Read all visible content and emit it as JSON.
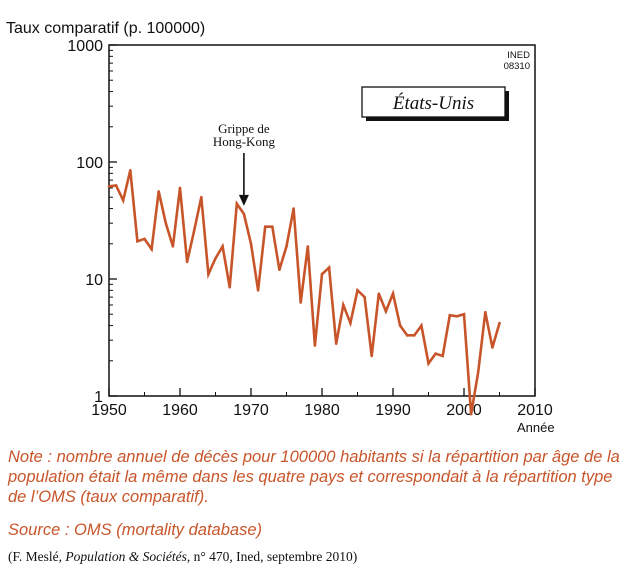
{
  "chart_data": {
    "type": "line",
    "title": "États-Unis",
    "ylabel": "Taux comparatif (p. 100000)",
    "xlabel": "Année",
    "yscale": "log",
    "ylim": [
      1,
      1000
    ],
    "xlim": [
      1950,
      2010
    ],
    "x_ticks": [
      "1950",
      "1960",
      "1970",
      "1980",
      "1990",
      "2000",
      "2010"
    ],
    "y_ticks": [
      "1",
      "10",
      "100",
      "1000"
    ],
    "grid": false,
    "badge": "INED\n08310",
    "annotation": {
      "text": "Grippe de\nHong-Kong",
      "x": 1969
    },
    "line_color": "#c8552a",
    "series": [
      {
        "x": [
          1950,
          1951,
          1952,
          1953,
          1954,
          1955,
          1956,
          1957,
          1958,
          1959,
          1960,
          1961,
          1962,
          1963,
          1964,
          1965,
          1966,
          1967,
          1968,
          1969,
          1970,
          1971,
          1972,
          1973,
          1974,
          1975,
          1976,
          1977,
          1978,
          1979,
          1980,
          1981,
          1982,
          1983,
          1984,
          1985,
          1986,
          1987,
          1988,
          1989,
          1990,
          1991,
          1992,
          1993,
          1994,
          1995,
          1996,
          1997,
          1998,
          1999,
          2000,
          2001,
          2002,
          2003,
          2004,
          2005
        ],
        "values": [
          62,
          63,
          47,
          85,
          21,
          22,
          18,
          56,
          30,
          19,
          60,
          14,
          26,
          50,
          11,
          15,
          19,
          8.5,
          44,
          36,
          20,
          8,
          28,
          28,
          12,
          19,
          40,
          6.3,
          19,
          2.7,
          11,
          12.5,
          2.8,
          6,
          4.2,
          8,
          7,
          2.2,
          7.5,
          5.3,
          7.5,
          4,
          3.3,
          3.3,
          4,
          1.9,
          2.3,
          2.2,
          4.9,
          4.8,
          5,
          0.7,
          1.6,
          5.2,
          2.6,
          4.2
        ]
      }
    ]
  },
  "note": "Note : nombre annuel de décès pour 100000 habitants si la répartition par âge de la population était la même dans les quatre pays et correspondait à la répartition type de l’OMS (taux comparatif).",
  "source": "Source : OMS (mortality database)",
  "citation": {
    "prefix": "(F. Meslé, ",
    "journal": "Population & Sociétés",
    "suffix": ", n° 470, Ined, septembre 2010)"
  }
}
